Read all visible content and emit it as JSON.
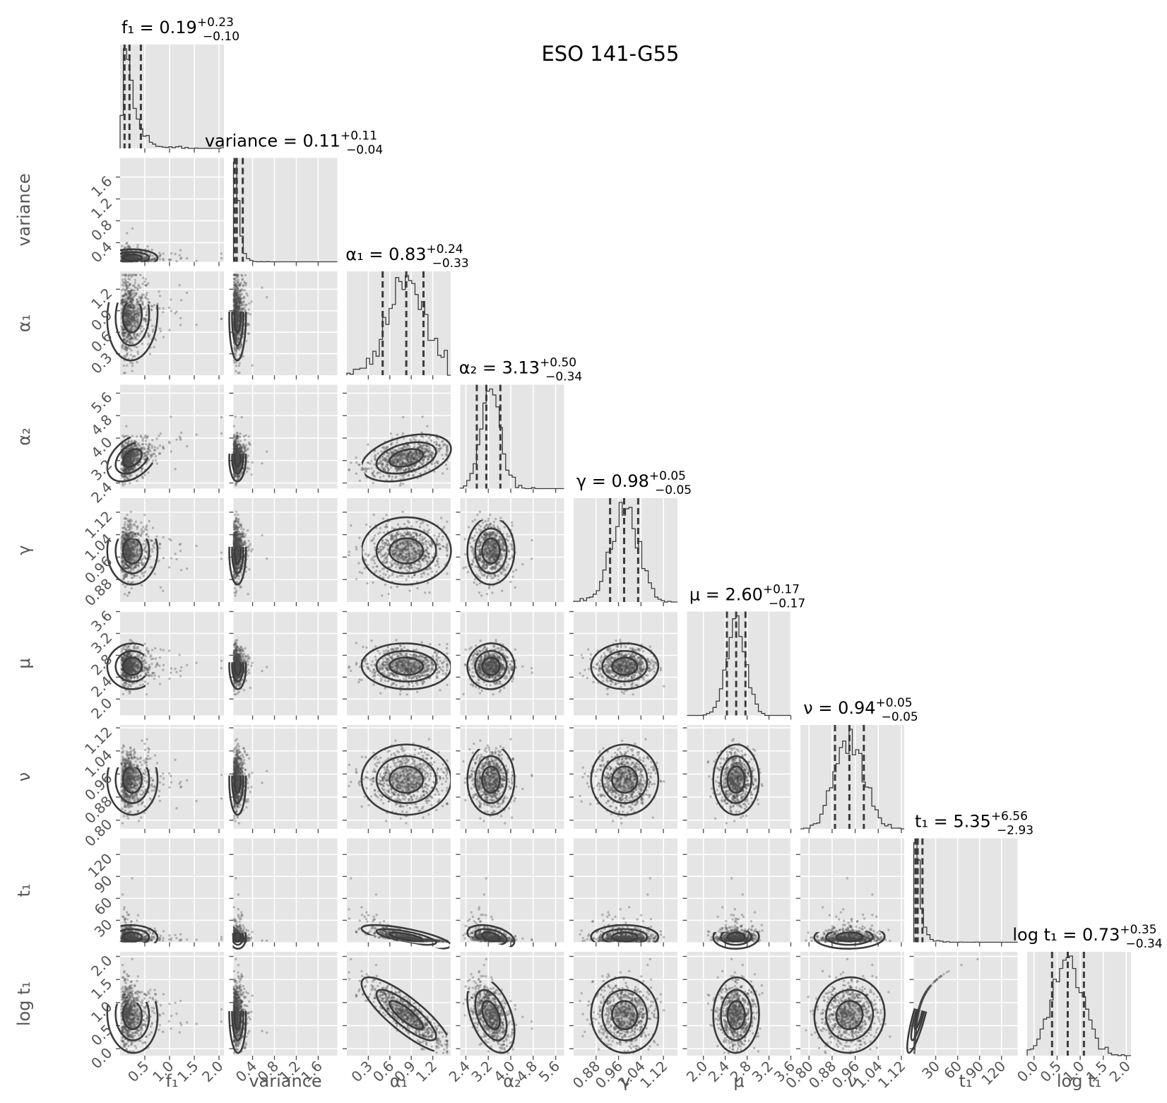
{
  "title": "ESO 141-G55",
  "colors": {
    "panel_bg": "#e5e5e5",
    "grid": "#ffffff",
    "ink": "#3b3b3b",
    "tick_text": "#555555",
    "title_text": "#000000",
    "point": "#4a4a4a"
  },
  "parameters": [
    {
      "label": "f₁",
      "summary": {
        "name": "f₁",
        "value": "0.19",
        "plus": "+0.23",
        "minus": "−0.10"
      },
      "range": [
        0.0,
        2.1
      ],
      "ticks": [
        0.5,
        1.0,
        1.5,
        2.0
      ],
      "tick_labels": [
        "0.5",
        "1.0",
        "1.5",
        "2.0"
      ],
      "quantiles": [
        0.09,
        0.19,
        0.42
      ]
    },
    {
      "label": "variance",
      "summary": {
        "name": "variance",
        "value": "0.11",
        "plus": "+0.11",
        "minus": "−0.04"
      },
      "range": [
        0.05,
        1.95
      ],
      "ticks": [
        0.4,
        0.8,
        1.2,
        1.6
      ],
      "tick_labels": [
        "0.4",
        "0.8",
        "1.2",
        "1.6"
      ],
      "quantiles": [
        0.07,
        0.11,
        0.22
      ]
    },
    {
      "label": "α₁",
      "summary": {
        "name": "α₁",
        "value": "0.83",
        "plus": "+0.24",
        "minus": "−0.33"
      },
      "range": [
        0.0,
        1.45
      ],
      "ticks": [
        0.3,
        0.6,
        0.9,
        1.2
      ],
      "tick_labels": [
        "0.3",
        "0.6",
        "0.9",
        "1.2"
      ],
      "quantiles": [
        0.5,
        0.83,
        1.07
      ]
    },
    {
      "label": "α₂",
      "summary": {
        "name": "α₂",
        "value": "3.13",
        "plus": "+0.50",
        "minus": "−0.34"
      },
      "range": [
        2.2,
        5.9
      ],
      "ticks": [
        2.4,
        3.2,
        4.0,
        4.8,
        5.6
      ],
      "tick_labels": [
        "2.4",
        "3.2",
        "4.0",
        "4.8",
        "5.6"
      ],
      "quantiles": [
        2.79,
        3.13,
        3.63
      ]
    },
    {
      "label": "γ",
      "summary": {
        "name": "γ",
        "value": "0.98",
        "plus": "+0.05",
        "minus": "−0.05"
      },
      "range": [
        0.8,
        1.17
      ],
      "ticks": [
        0.88,
        0.96,
        1.04,
        1.12
      ],
      "tick_labels": [
        "0.88",
        "0.96",
        "1.04",
        "1.12"
      ],
      "quantiles": [
        0.93,
        0.98,
        1.03
      ]
    },
    {
      "label": "μ",
      "summary": {
        "name": "μ",
        "value": "2.60",
        "plus": "+0.17",
        "minus": "−0.17"
      },
      "range": [
        1.7,
        3.6
      ],
      "ticks": [
        2.0,
        2.4,
        2.8,
        3.2,
        3.6
      ],
      "tick_labels": [
        "2.0",
        "2.4",
        "2.8",
        "3.2",
        "3.6"
      ],
      "quantiles": [
        2.43,
        2.6,
        2.77
      ]
    },
    {
      "label": "ν",
      "summary": {
        "name": "ν",
        "value": "0.94",
        "plus": "+0.05",
        "minus": "−0.05"
      },
      "range": [
        0.77,
        1.13
      ],
      "ticks": [
        0.8,
        0.88,
        0.96,
        1.04,
        1.12
      ],
      "tick_labels": [
        "0.80",
        "0.88",
        "0.96",
        "1.04",
        "1.12"
      ],
      "quantiles": [
        0.89,
        0.94,
        0.99
      ]
    },
    {
      "label": "t₁",
      "summary": {
        "name": "t₁",
        "value": "5.35",
        "plus": "+6.56",
        "minus": "−2.93"
      },
      "range": [
        0.0,
        142.0
      ],
      "ticks": [
        30,
        60,
        90,
        120
      ],
      "tick_labels": [
        "30",
        "60",
        "90",
        "120"
      ],
      "quantiles": [
        2.42,
        5.35,
        11.91
      ]
    },
    {
      "label": "log t₁",
      "summary": {
        "name": "log t₁",
        "value": "0.73",
        "plus": "+0.35",
        "minus": "−0.34"
      },
      "range": [
        -0.15,
        2.1
      ],
      "ticks": [
        0.0,
        0.5,
        1.0,
        1.5,
        2.0
      ],
      "tick_labels": [
        "0.0",
        "0.5",
        "1.0",
        "1.5",
        "2.0"
      ],
      "quantiles": [
        0.39,
        0.73,
        1.08
      ]
    }
  ],
  "chart_data": {
    "type": "scatter",
    "title": "ESO 141-G55",
    "kind": "corner plot (posterior histograms on diagonal, 2D density contours below)",
    "grid": true,
    "series": [
      {
        "name": "f₁",
        "median": 0.19,
        "err_plus": 0.23,
        "err_minus": 0.1
      },
      {
        "name": "variance",
        "median": 0.11,
        "err_plus": 0.11,
        "err_minus": 0.04
      },
      {
        "name": "α₁",
        "median": 0.83,
        "err_plus": 0.24,
        "err_minus": 0.33
      },
      {
        "name": "α₂",
        "median": 3.13,
        "err_plus": 0.5,
        "err_minus": 0.34
      },
      {
        "name": "γ",
        "median": 0.98,
        "err_plus": 0.05,
        "err_minus": 0.05
      },
      {
        "name": "μ",
        "median": 2.6,
        "err_plus": 0.17,
        "err_minus": 0.17
      },
      {
        "name": "ν",
        "median": 0.94,
        "err_plus": 0.05,
        "err_minus": 0.05
      },
      {
        "name": "t₁",
        "median": 5.35,
        "err_plus": 6.56,
        "err_minus": 2.93
      },
      {
        "name": "log t₁",
        "median": 0.73,
        "err_plus": 0.35,
        "err_minus": 0.34
      }
    ]
  }
}
